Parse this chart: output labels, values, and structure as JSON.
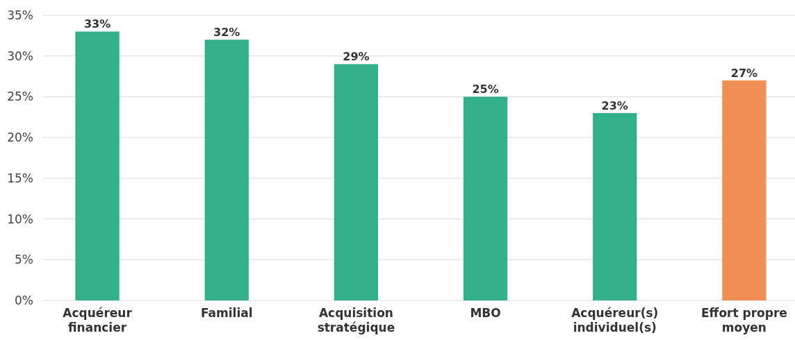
{
  "chart_data": {
    "type": "bar",
    "categories": [
      "Acquéreur financier",
      "Familial",
      "Acquisition stratégique",
      "MBO",
      "Acquéreur(s) individuel(s)",
      "Effort propre moyen"
    ],
    "values": [
      33,
      32,
      29,
      25,
      23,
      27
    ],
    "colors": [
      "#33b08a",
      "#33b08a",
      "#33b08a",
      "#33b08a",
      "#33b08a",
      "#f28f55"
    ],
    "value_labels": [
      "33%",
      "32%",
      "29%",
      "25%",
      "23%",
      "27%"
    ],
    "ylim": [
      0,
      35
    ],
    "yticks": [
      {
        "value": 0,
        "label": "0%"
      },
      {
        "value": 5,
        "label": "5%"
      },
      {
        "value": 10,
        "label": "10%"
      },
      {
        "value": 15,
        "label": "15%"
      },
      {
        "value": 20,
        "label": "20%"
      },
      {
        "value": 25,
        "label": "25%"
      },
      {
        "value": 30,
        "label": "30%"
      },
      {
        "value": 35,
        "label": "35%"
      }
    ],
    "grid": "y"
  }
}
